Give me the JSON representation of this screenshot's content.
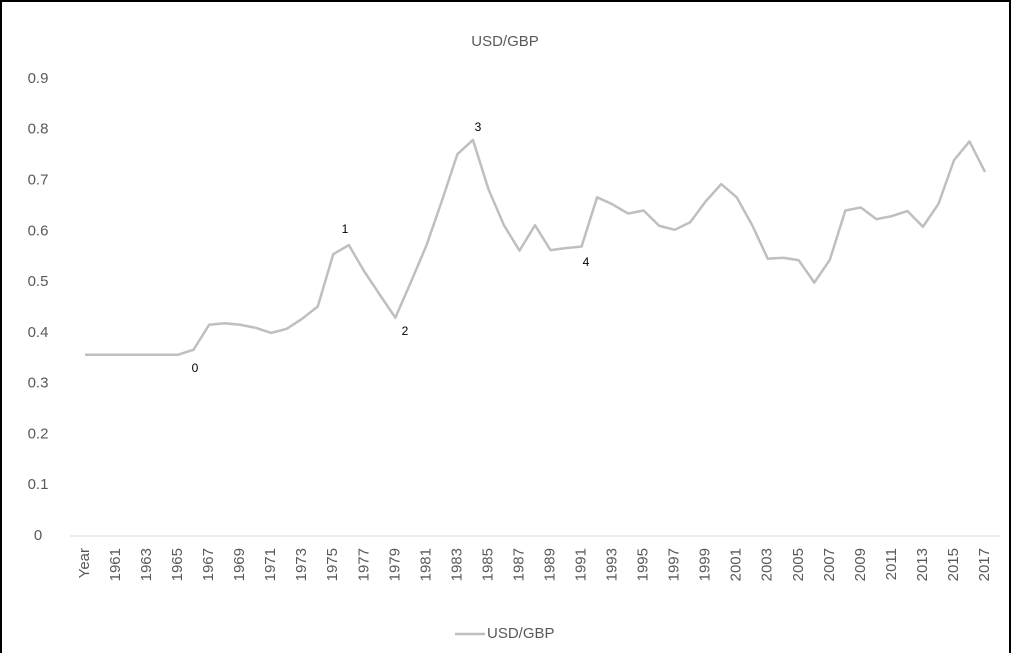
{
  "chart_data": {
    "type": "line",
    "title": "USD/GBP",
    "categories": [
      "Year",
      null,
      "1961",
      null,
      "1963",
      null,
      "1965",
      null,
      "1967",
      null,
      "1969",
      null,
      "1971",
      null,
      "1973",
      null,
      "1975",
      null,
      "1977",
      null,
      "1979",
      null,
      "1981",
      null,
      "1983",
      null,
      "1985",
      null,
      "1987",
      null,
      "1989",
      null,
      "1991",
      null,
      "1993",
      null,
      "1995",
      null,
      "1997",
      null,
      "1999",
      null,
      "2001",
      null,
      "2003",
      null,
      "2005",
      null,
      "2007",
      null,
      "2009",
      null,
      "2011",
      null,
      "2013",
      null,
      "2015",
      null,
      "2017"
    ],
    "series": [
      {
        "name": "USD/GBP",
        "color": "#bfbfbf",
        "values": [
          0.357,
          0.357,
          0.357,
          0.357,
          0.357,
          0.357,
          0.357,
          0.367,
          0.416,
          0.419,
          0.416,
          0.41,
          0.4,
          0.408,
          0.428,
          0.452,
          0.555,
          0.573,
          0.521,
          0.475,
          0.43,
          0.5,
          0.572,
          0.66,
          0.752,
          0.78,
          0.683,
          0.612,
          0.562,
          0.612,
          0.563,
          0.567,
          0.57,
          0.667,
          0.653,
          0.635,
          0.641,
          0.611,
          0.603,
          0.618,
          0.659,
          0.693,
          0.667,
          0.612,
          0.546,
          0.548,
          0.543,
          0.499,
          0.544,
          0.641,
          0.647,
          0.624,
          0.63,
          0.64,
          0.609,
          0.654,
          0.74,
          0.777,
          0.717
        ]
      }
    ],
    "annotations": [
      "0",
      "1",
      "2",
      "3",
      "4"
    ],
    "ylim": [
      0,
      0.9
    ],
    "yticks": [
      0,
      0.1,
      0.2,
      0.3,
      0.4,
      0.5,
      0.6,
      0.7,
      0.8,
      0.9
    ],
    "grid": false,
    "legend": "bottom"
  }
}
